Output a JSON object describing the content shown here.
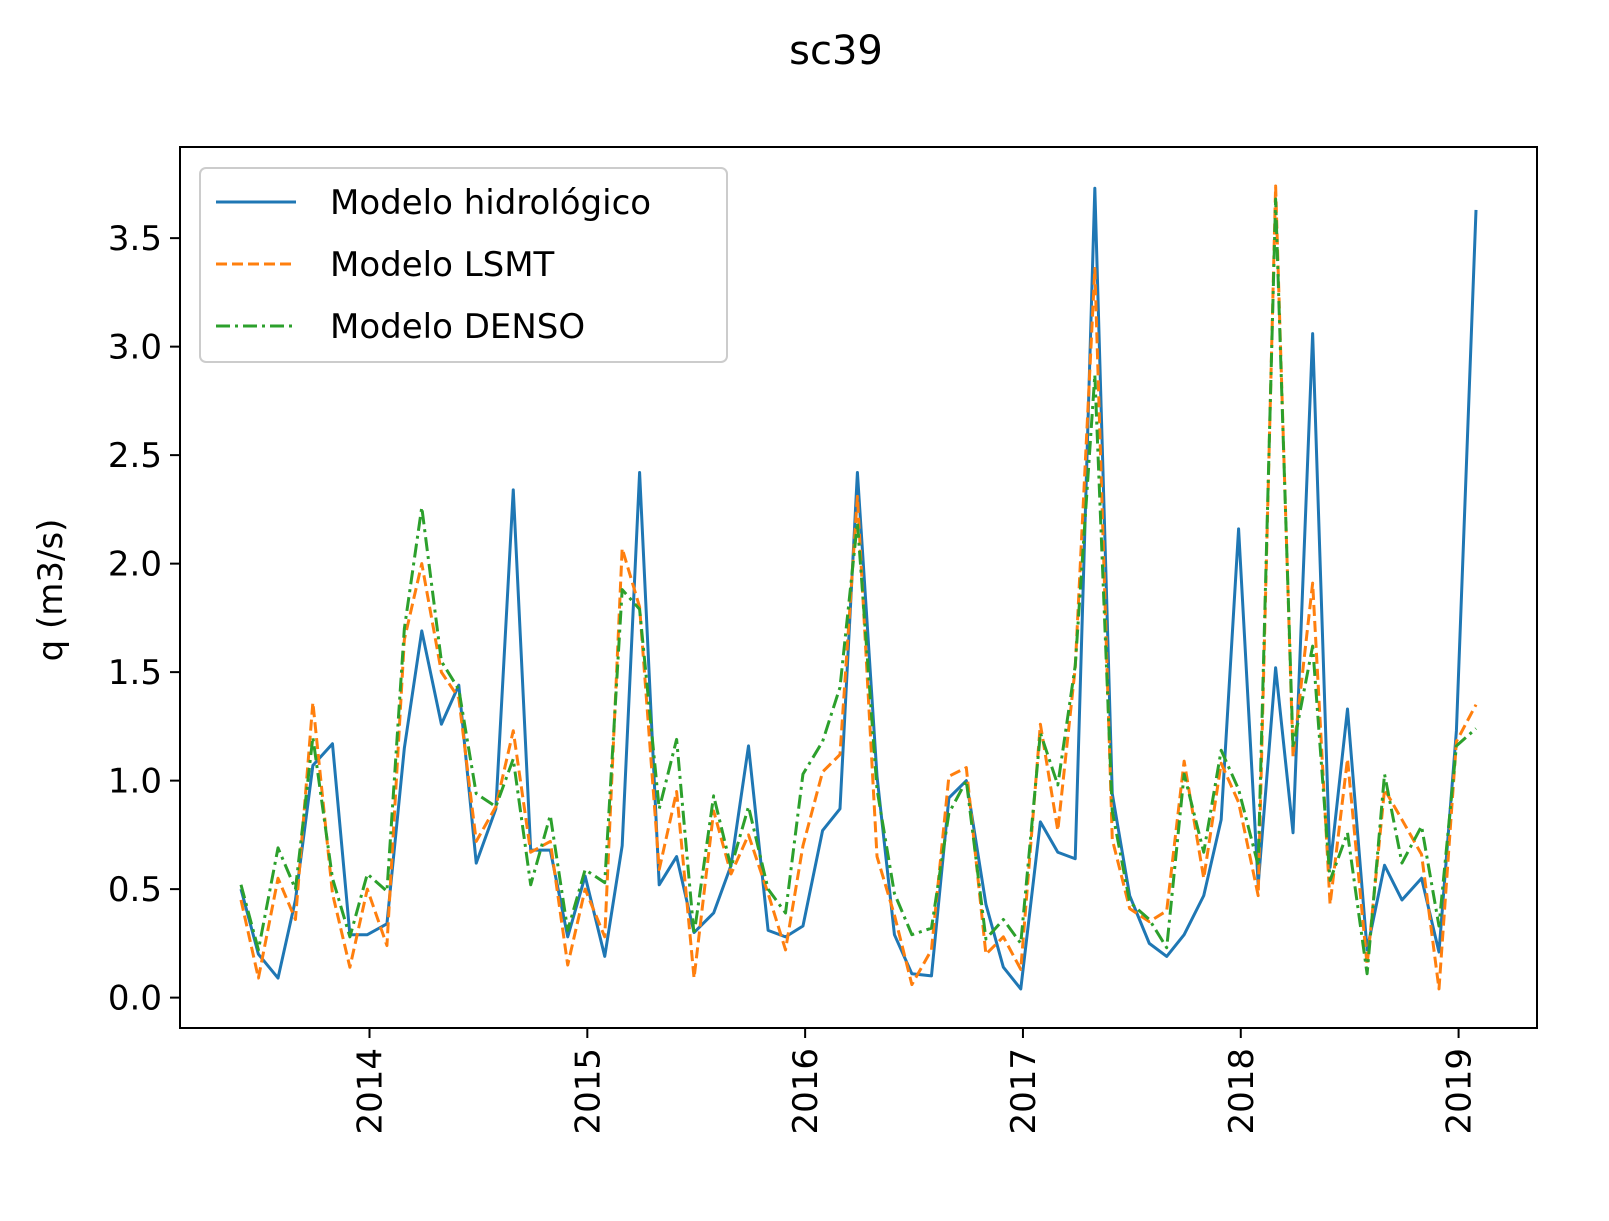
{
  "chart_data": {
    "type": "line",
    "title": "sc39",
    "y_label": "q (m3/s)",
    "x": [
      2013.41,
      2013.49,
      2013.58,
      2013.66,
      2013.74,
      2013.83,
      2013.91,
      2013.99,
      2014.08,
      2014.16,
      2014.24,
      2014.33,
      2014.41,
      2014.49,
      2014.58,
      2014.66,
      2014.74,
      2014.83,
      2014.91,
      2014.99,
      2015.08,
      2015.16,
      2015.24,
      2015.33,
      2015.41,
      2015.49,
      2015.58,
      2015.66,
      2015.74,
      2015.83,
      2015.91,
      2015.99,
      2016.08,
      2016.16,
      2016.24,
      2016.33,
      2016.41,
      2016.49,
      2016.58,
      2016.66,
      2016.74,
      2016.83,
      2016.91,
      2016.99,
      2017.08,
      2017.16,
      2017.24,
      2017.33,
      2017.41,
      2017.49,
      2017.58,
      2017.66,
      2017.74,
      2017.83,
      2017.91,
      2017.99,
      2018.08,
      2018.16,
      2018.24,
      2018.33,
      2018.41,
      2018.49,
      2018.58,
      2018.66,
      2018.74,
      2018.83,
      2018.91,
      2018.99,
      2019.08
    ],
    "series": [
      {
        "name": "Modelo hidrológico",
        "color": "#1f77b4",
        "dash": "solid",
        "values": [
          0.5,
          0.2,
          0.09,
          0.45,
          1.07,
          1.17,
          0.29,
          0.29,
          0.34,
          1.15,
          1.69,
          1.26,
          1.44,
          0.62,
          0.87,
          2.34,
          0.68,
          0.68,
          0.28,
          0.56,
          0.19,
          0.7,
          2.42,
          0.52,
          0.65,
          0.3,
          0.39,
          0.61,
          1.16,
          0.31,
          0.28,
          0.33,
          0.77,
          0.87,
          2.42,
          1.02,
          0.29,
          0.11,
          0.1,
          0.92,
          1.0,
          0.43,
          0.14,
          0.04,
          0.81,
          0.67,
          0.64,
          3.73,
          0.94,
          0.47,
          0.25,
          0.19,
          0.29,
          0.47,
          0.82,
          2.16,
          0.52,
          1.52,
          0.76,
          3.06,
          0.6,
          1.33,
          0.22,
          0.61,
          0.45,
          0.55,
          0.21,
          1.23,
          3.63
        ]
      },
      {
        "name": "Modelo LSMT",
        "color": "#ff7f0e",
        "dash": "dashed",
        "values": [
          0.45,
          0.09,
          0.55,
          0.36,
          1.36,
          0.48,
          0.14,
          0.5,
          0.24,
          1.65,
          2.0,
          1.5,
          1.38,
          0.72,
          0.88,
          1.23,
          0.67,
          0.72,
          0.15,
          0.5,
          0.28,
          2.07,
          1.8,
          0.59,
          0.95,
          0.09,
          0.86,
          0.57,
          0.75,
          0.48,
          0.22,
          0.7,
          1.04,
          1.12,
          2.31,
          0.65,
          0.38,
          0.06,
          0.22,
          1.02,
          1.06,
          0.2,
          0.28,
          0.13,
          1.26,
          0.77,
          1.52,
          3.36,
          0.73,
          0.41,
          0.35,
          0.4,
          1.09,
          0.55,
          1.08,
          0.9,
          0.47,
          3.74,
          1.11,
          1.91,
          0.43,
          1.1,
          0.15,
          0.96,
          0.82,
          0.66,
          0.04,
          1.18,
          1.35
        ]
      },
      {
        "name": "Modelo DENSO",
        "color": "#2ca02c",
        "dash": "dashdot",
        "values": [
          0.52,
          0.22,
          0.69,
          0.5,
          1.2,
          0.55,
          0.28,
          0.57,
          0.49,
          1.7,
          2.26,
          1.55,
          1.42,
          0.94,
          0.88,
          1.1,
          0.52,
          0.84,
          0.31,
          0.59,
          0.53,
          1.88,
          1.79,
          0.87,
          1.19,
          0.29,
          0.93,
          0.6,
          0.88,
          0.5,
          0.39,
          1.03,
          1.18,
          1.43,
          2.19,
          0.96,
          0.48,
          0.29,
          0.32,
          0.85,
          1.0,
          0.27,
          0.36,
          0.25,
          1.22,
          0.98,
          1.53,
          2.87,
          0.86,
          0.44,
          0.36,
          0.23,
          1.03,
          0.67,
          1.14,
          0.96,
          0.61,
          3.68,
          1.15,
          1.62,
          0.54,
          0.76,
          0.11,
          1.03,
          0.62,
          0.79,
          0.33,
          1.16,
          1.24
        ]
      }
    ],
    "xlim": [
      2013.13,
      2019.36
    ],
    "xticks": [
      2014,
      2015,
      2016,
      2017,
      2018,
      2019
    ],
    "ylim": [
      -0.14,
      3.92
    ],
    "yticks": [
      {
        "value": 0,
        "label": "0.0"
      },
      0.5,
      {
        "value": 1,
        "label": "1.0"
      },
      1.5,
      {
        "value": 2,
        "label": "2.0"
      },
      2.5,
      {
        "value": 3,
        "label": "3.0"
      },
      3.5
    ],
    "legend": "upper left",
    "grid": false
  }
}
